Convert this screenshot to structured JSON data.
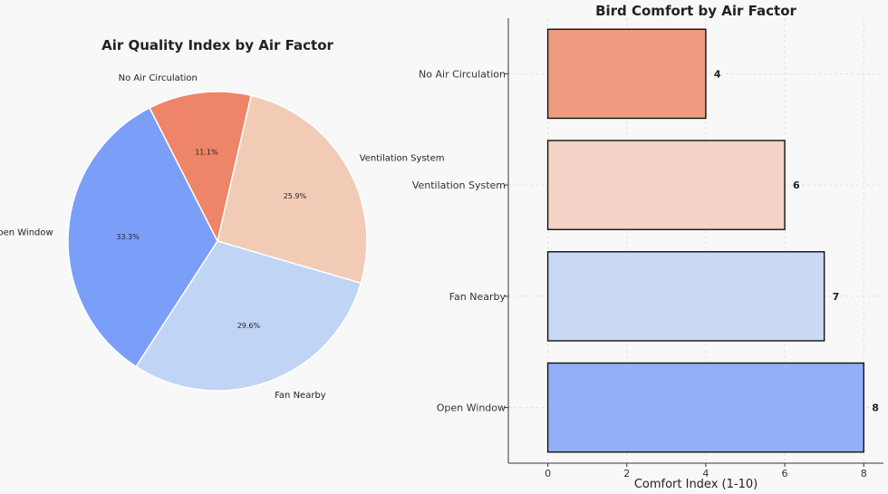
{
  "chart_data": [
    {
      "type": "pie",
      "title": "Air Quality Index by Air Factor",
      "slices": [
        {
          "label": "Ventilation System",
          "percent": 25.9,
          "pct_label": "25.9%",
          "color": "#f2cbb7"
        },
        {
          "label": "Fan Nearby",
          "percent": 29.6,
          "pct_label": "29.6%",
          "color": "#c0d4f5"
        },
        {
          "label": "Open Window",
          "percent": 33.3,
          "pct_label": "33.3%",
          "color": "#7b9ff9"
        },
        {
          "label": "No Air Circulation",
          "percent": 11.1,
          "pct_label": "11.1%",
          "color": "#ee8468"
        }
      ]
    },
    {
      "type": "bar",
      "orientation": "horizontal",
      "title": "Bird Comfort by Air Factor",
      "xlabel": "Comfort Index (1-10)",
      "ylabel": "",
      "xlim": [
        -1,
        8.5
      ],
      "xticks": [
        "0",
        "2",
        "4",
        "6",
        "8"
      ],
      "categories": [
        "Open Window",
        "Fan Nearby",
        "Ventilation System",
        "No Air Circulation"
      ],
      "values": [
        8,
        7,
        6,
        4
      ],
      "value_labels": [
        "8",
        "7",
        "6",
        "4"
      ],
      "colors": [
        "#93aff8",
        "#c9d9f4",
        "#f2d3c5",
        "#ef9b80"
      ],
      "grid": true
    }
  ]
}
